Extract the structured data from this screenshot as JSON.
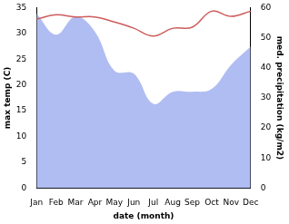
{
  "chart_data": {
    "type": "line",
    "x_label": "date (month)",
    "y_label": "max temp (C)",
    "y2_label": "med. precipitation (kg/m2)",
    "categories": [
      "Jan",
      "Feb",
      "Mar",
      "Apr",
      "May",
      "Jun",
      "Jul",
      "Aug",
      "Sep",
      "Oct",
      "Nov",
      "Dec"
    ],
    "series": [
      {
        "name": "med. precipitation",
        "type": "area",
        "axis": "y2",
        "color": "#b0bdf2",
        "values": [
          58,
          51,
          57,
          52,
          39,
          38,
          28,
          32,
          32,
          33,
          41,
          47
        ]
      },
      {
        "name": "max temp",
        "type": "line",
        "color": "#cd5c5c",
        "values": [
          32.8,
          33.6,
          33.2,
          33.2,
          32.2,
          31,
          29.5,
          31,
          31.2,
          34.3,
          33.3,
          34.3
        ]
      }
    ],
    "ylim": [
      0,
      35
    ],
    "yticks": [
      0,
      5,
      10,
      15,
      20,
      25,
      30,
      35
    ],
    "y2lim": [
      0,
      60
    ],
    "y2ticks": [
      0,
      10,
      20,
      30,
      40,
      50,
      60
    ],
    "grid": false
  }
}
